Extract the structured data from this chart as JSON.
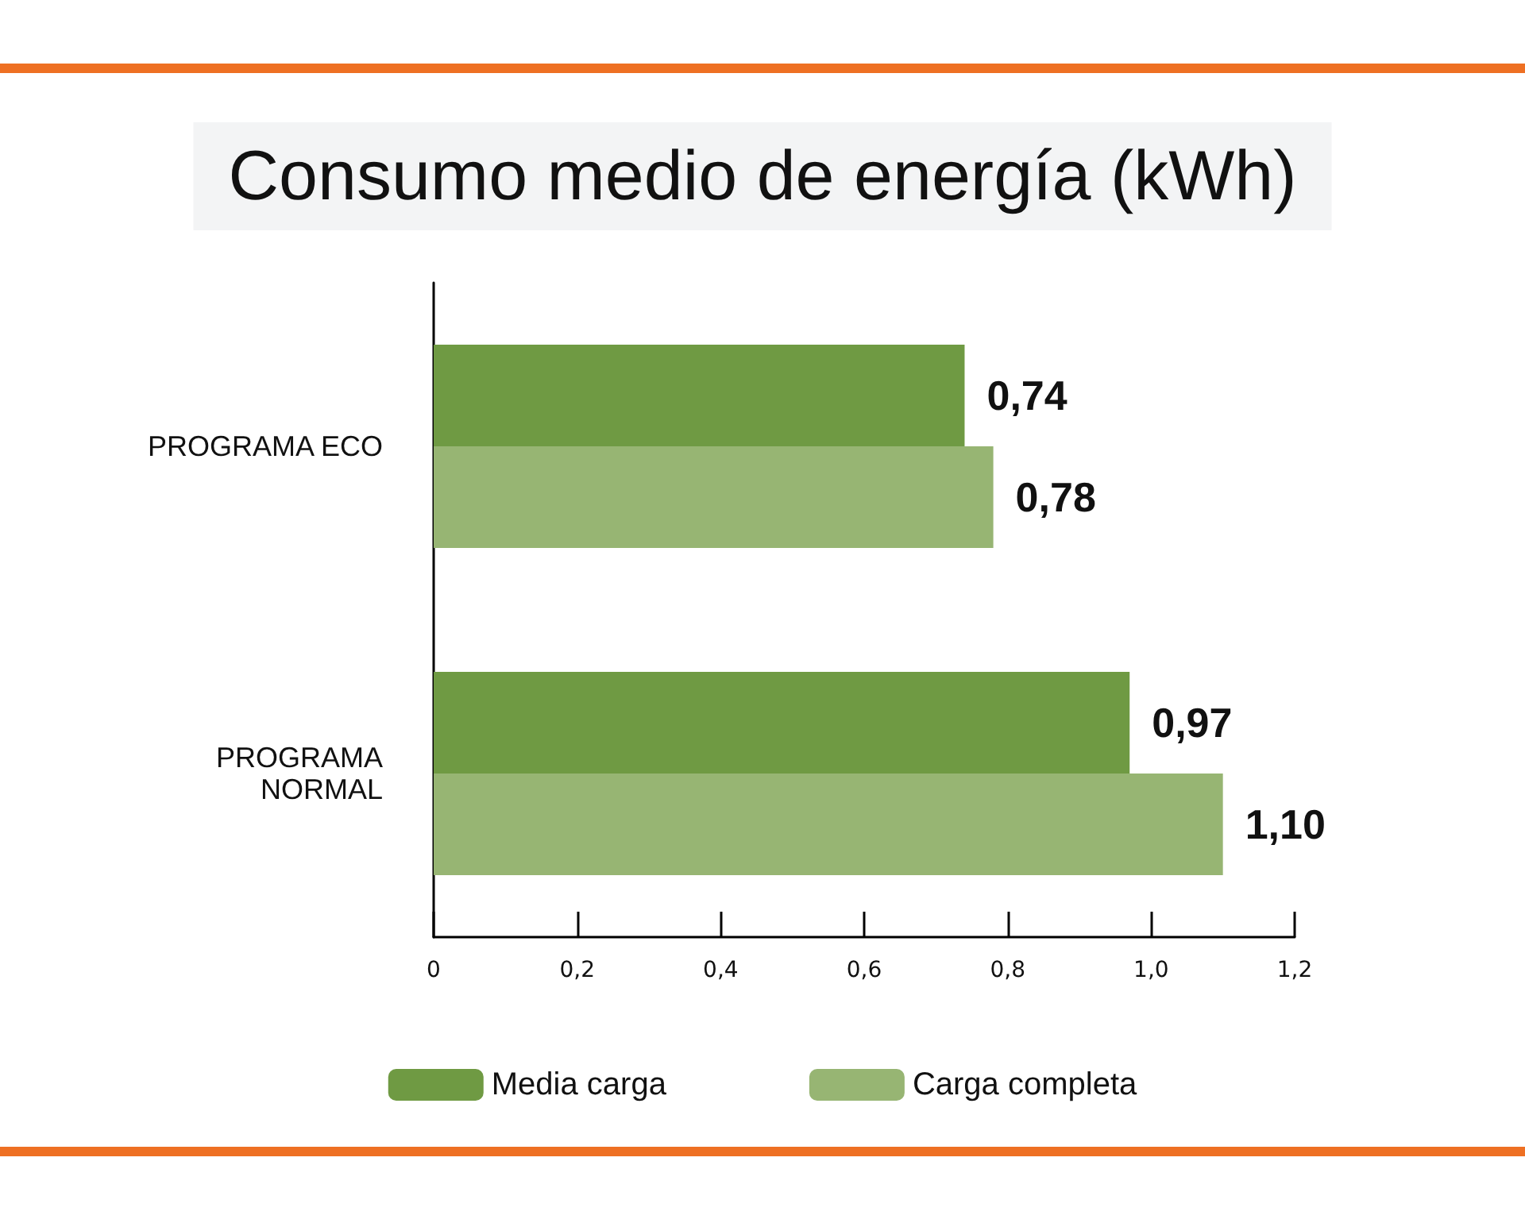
{
  "chart_data": {
    "type": "bar",
    "orientation": "horizontal",
    "title": "Consumo medio de energía (kWh)",
    "categories": [
      "PROGRAMA ECO",
      "PROGRAMA\nNORMAL"
    ],
    "series": [
      {
        "name": "Media carga",
        "color": "#6f9a43",
        "values": [
          0.74,
          0.97
        ],
        "value_labels": [
          "0,74",
          "0,97"
        ]
      },
      {
        "name": "Carga completa",
        "color": "#97b573",
        "values": [
          0.78,
          1.1
        ],
        "value_labels": [
          "0,78",
          "1,10"
        ]
      }
    ],
    "xlim": [
      0,
      1.2
    ],
    "xticks": [
      0,
      {
        "value": 0.2,
        "label": "0,2"
      },
      {
        "value": 0.4,
        "label": "0,4"
      },
      {
        "value": 0.6,
        "label": "0,6"
      },
      {
        "value": 0.8,
        "label": "0,8"
      },
      {
        "value": 1.0,
        "label": "1,0"
      },
      {
        "value": 1.2,
        "label": "1,2"
      }
    ],
    "grid": false,
    "legend": "bottom"
  }
}
